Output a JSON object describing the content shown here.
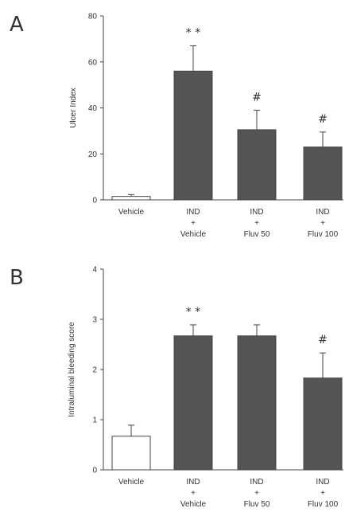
{
  "chart_data": [
    {
      "panel": "A",
      "type": "bar",
      "ylabel": "Ulcer Index",
      "ylim": [
        0,
        80
      ],
      "yticks": [
        0,
        20,
        40,
        60,
        80
      ],
      "categories": [
        [
          "Vehicle"
        ],
        [
          "IND",
          "+",
          "Vehicle"
        ],
        [
          "IND",
          "+",
          "Fluv 50"
        ],
        [
          "IND",
          "+",
          "Fluv 100"
        ]
      ],
      "values": [
        1.5,
        56,
        30.5,
        23
      ],
      "errors": [
        0.8,
        11,
        8.5,
        6.5
      ],
      "bar_colors": [
        "#ffffff",
        "#555555",
        "#555555",
        "#555555"
      ],
      "annotations": [
        "",
        "* *",
        "#",
        "#"
      ]
    },
    {
      "panel": "B",
      "type": "bar",
      "ylabel": "Intraluminal bleeding score",
      "ylim": [
        0,
        4
      ],
      "yticks": [
        0,
        1,
        2,
        3,
        4
      ],
      "categories": [
        [
          "Vehicle"
        ],
        [
          "IND",
          "+",
          "Vehicle"
        ],
        [
          "IND",
          "+",
          "Fluv 50"
        ],
        [
          "IND",
          "+",
          "Fluv 100"
        ]
      ],
      "values": [
        0.67,
        2.67,
        2.67,
        1.83
      ],
      "errors": [
        0.22,
        0.22,
        0.22,
        0.5
      ],
      "bar_colors": [
        "#ffffff",
        "#555555",
        "#555555",
        "#555555"
      ],
      "annotations": [
        "",
        "* *",
        "",
        "#"
      ]
    }
  ]
}
